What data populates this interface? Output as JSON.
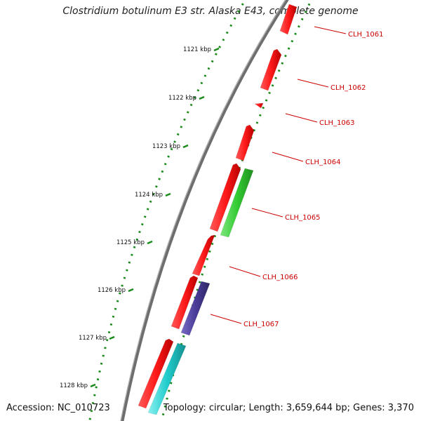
{
  "map": {
    "title": "Clostridium botulinum E3 str. Alaska E43, complete genome",
    "accession_text": "Accession: NC_010723",
    "summary_text": "Topology: circular; Length: 3,659,644 bp; Genes: 3,370",
    "ticks": [
      "1121 kbp",
      "1122 kbp",
      "1123 kbp",
      "1124 kbp",
      "1125 kbp",
      "1126 kbp",
      "1127 kbp",
      "1128 kbp"
    ],
    "gene_labels": [
      "CLH_1061",
      "CLH_1062",
      "CLH_1063",
      "CLH_1064",
      "CLH_1065",
      "CLH_1066",
      "CLH_1067"
    ],
    "colors": {
      "backbone": "#7a7a7a",
      "gene_forward": "#ff1a1a",
      "gene_green": "#33cc33",
      "gene_purple": "#4a3d99",
      "gene_cyan": "#22cccc",
      "tick_dots": "#1a8a1a",
      "label_red": "#cc0000"
    }
  }
}
